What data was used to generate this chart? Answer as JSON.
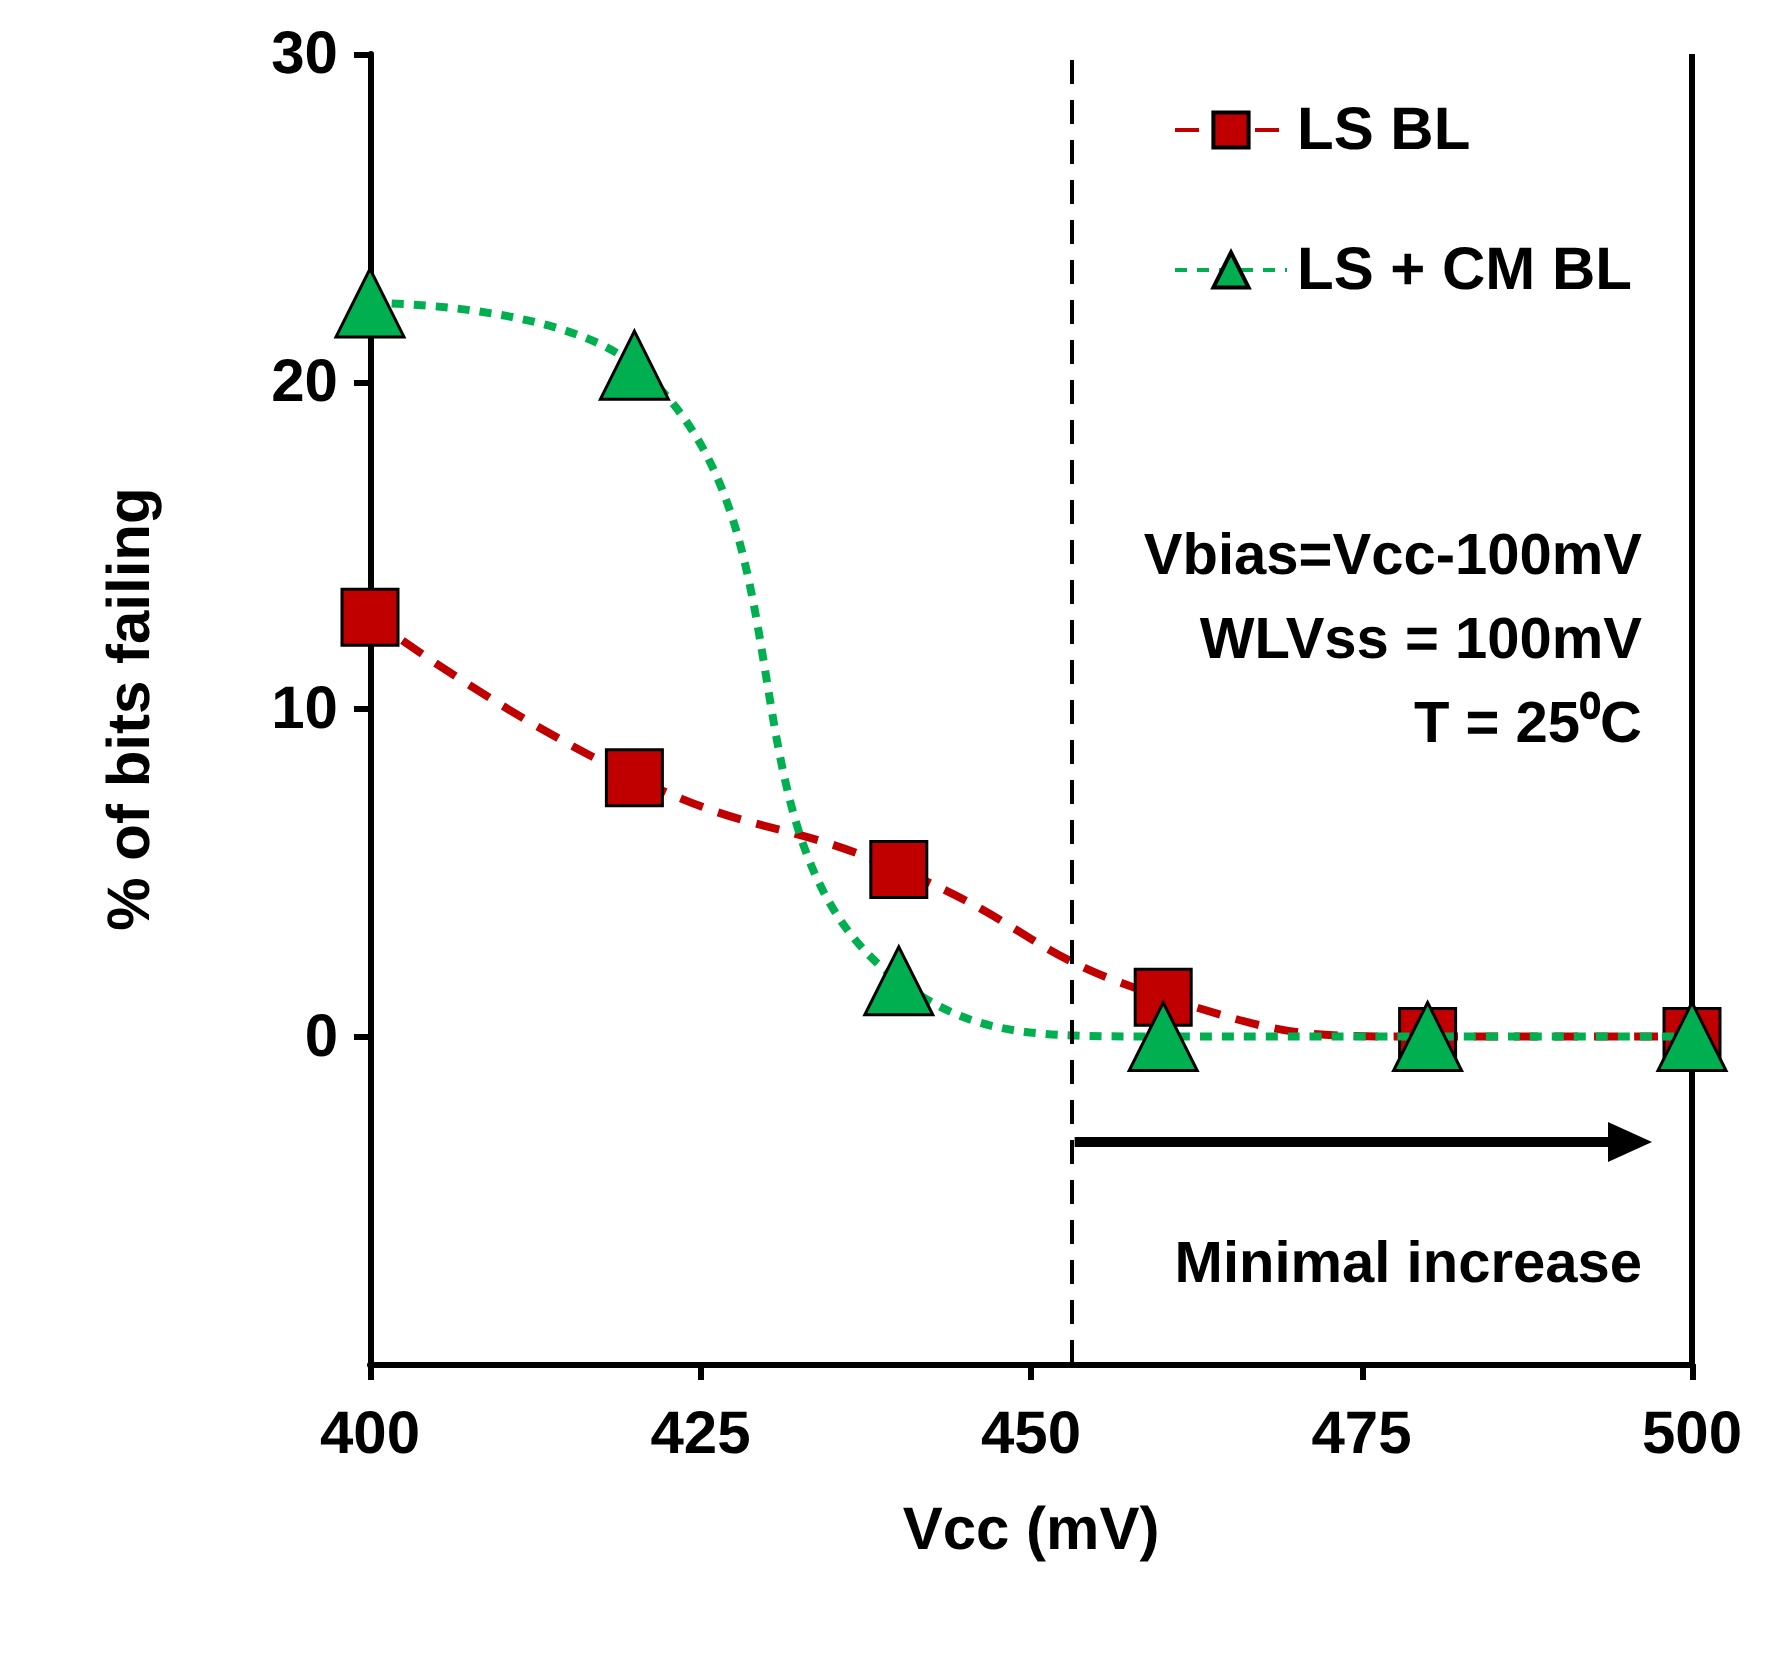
{
  "chart_data": {
    "type": "line",
    "xlabel": "Vcc (mV)",
    "ylabel": "% of bits failing",
    "x": [
      400,
      420,
      440,
      460,
      480,
      500
    ],
    "series": [
      {
        "name": "LS BL",
        "color": "#c00000",
        "values": [
          12.8,
          7.9,
          5.1,
          1.2,
          0,
          0
        ],
        "marker": "square",
        "line_style": "dashed"
      },
      {
        "name": "LS + CM BL",
        "color": "#00b050",
        "values": [
          22.4,
          20.5,
          1.7,
          0,
          0,
          0
        ],
        "marker": "triangle",
        "line_style": "dotted"
      }
    ],
    "xlim": [
      400,
      500
    ],
    "xticks": [
      400,
      425,
      450,
      475,
      500
    ],
    "ylim": [
      -10,
      30
    ],
    "yticks": [
      0,
      10,
      20,
      30
    ],
    "ref_lines": [
      {
        "axis": "x",
        "value": 453,
        "label": null,
        "color": "#000000",
        "line_style": "dashed"
      }
    ],
    "annotations": [
      "Vbias=Vcc-100mV",
      "WLVss = 100mV",
      "T = 25⁰C",
      "Minimal increase"
    ],
    "grid": false,
    "legend": "top right"
  }
}
